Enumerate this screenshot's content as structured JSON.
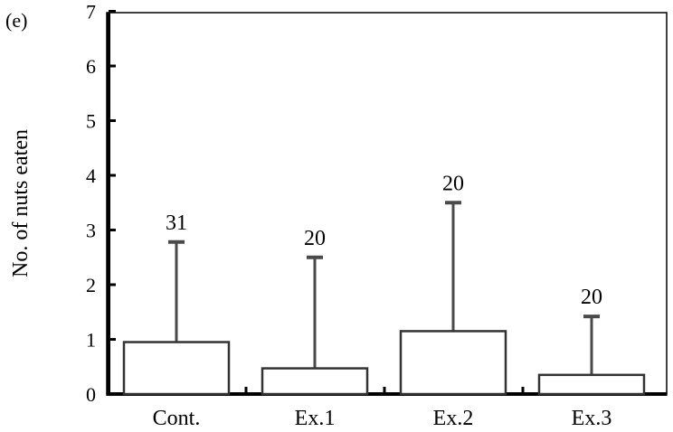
{
  "panel_label": "(e)",
  "chart_data": {
    "type": "bar",
    "title": "",
    "xlabel": "",
    "ylabel": "No. of nuts eaten",
    "ylim": [
      0,
      7
    ],
    "yticks": [
      "0",
      "1",
      "2",
      "3",
      "4",
      "5",
      "6",
      "7"
    ],
    "categories": [
      "Cont.",
      "Ex.1",
      "Ex.2",
      "Ex.3"
    ],
    "values": [
      0.95,
      0.47,
      1.15,
      0.35
    ],
    "error_upper": [
      2.78,
      2.5,
      3.5,
      1.42
    ],
    "sample_sizes": [
      "31",
      "20",
      "20",
      "20"
    ],
    "grid": false,
    "legend": "none",
    "colors": {
      "bar_fill": "#ffffff",
      "bar_stroke": "#333333",
      "axis": "#000000",
      "error_bar": "#4a4a4a"
    }
  }
}
